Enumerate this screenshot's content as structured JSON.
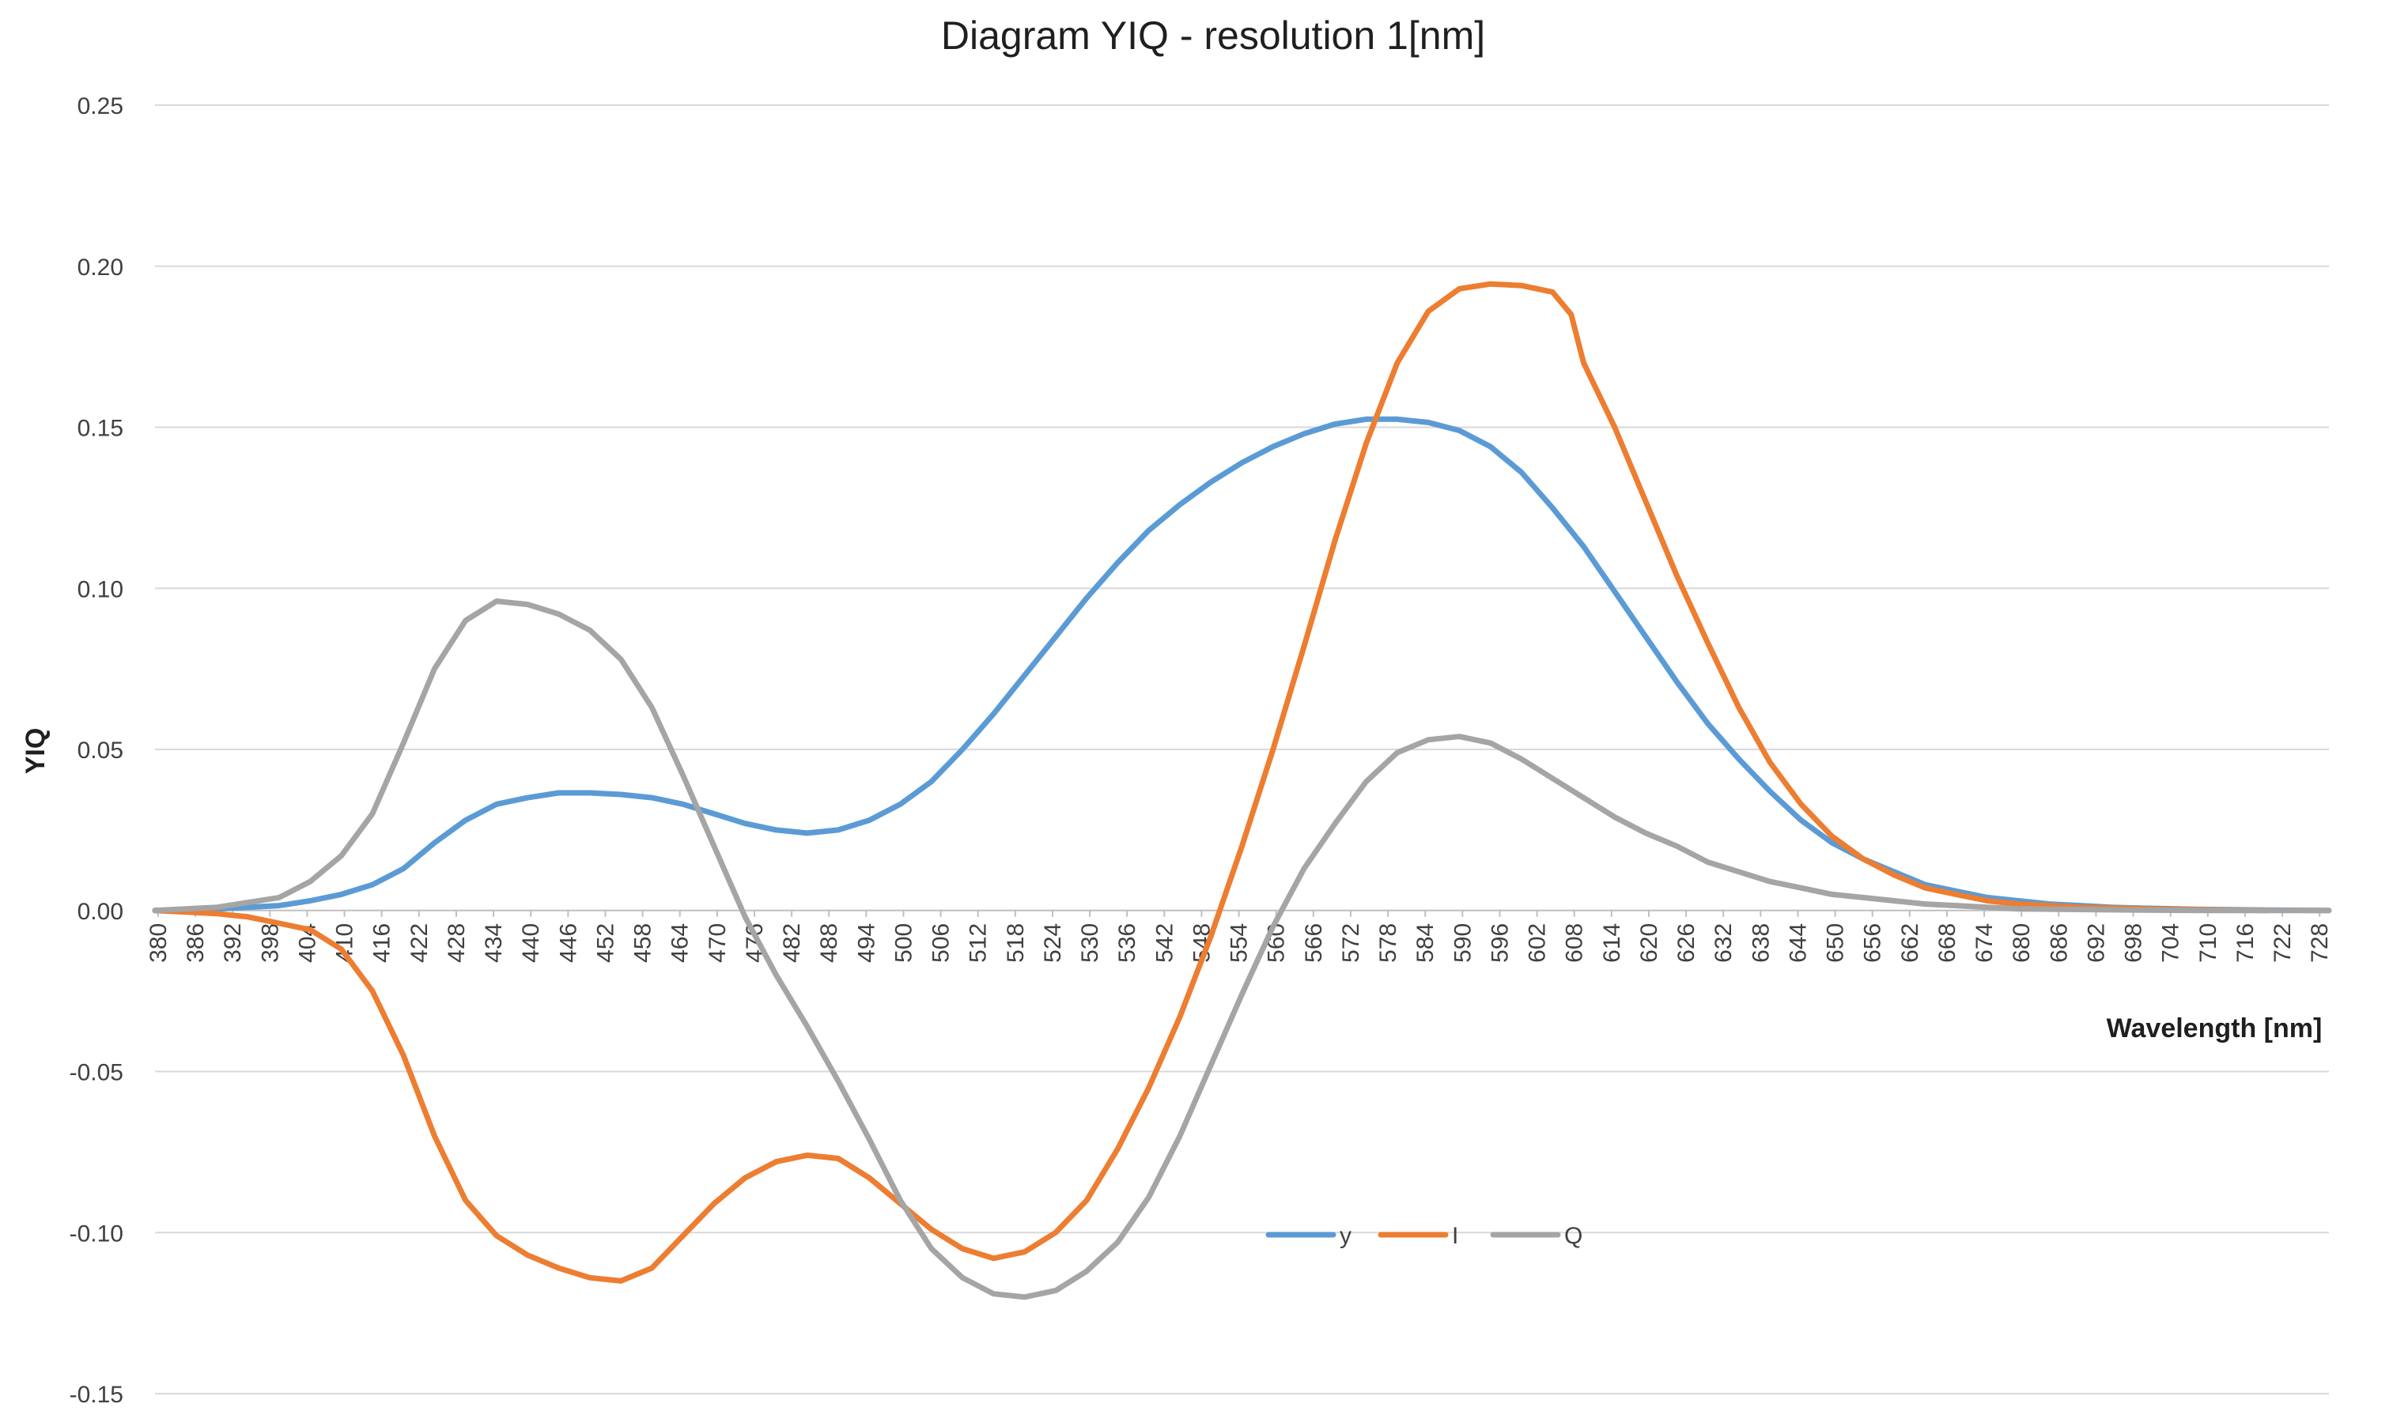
{
  "chart_data": {
    "type": "line",
    "title": "Diagram YIQ - resolution 1[nm]",
    "xlabel": "Wavelength [nm]",
    "ylabel": "YIQ",
    "ylim": [
      -0.15,
      0.25
    ],
    "yticks": [
      "0.25",
      "0.20",
      "0.15",
      "0.10",
      "0.05",
      "0.00",
      "-0.05",
      "-0.10",
      "-0.15"
    ],
    "ytick_values": [
      0.25,
      0.2,
      0.15,
      0.1,
      0.05,
      0.0,
      -0.05,
      -0.1,
      -0.15
    ],
    "x_range": [
      380,
      730
    ],
    "xticks": [
      "380",
      "386",
      "392",
      "398",
      "404",
      "410",
      "416",
      "422",
      "428",
      "434",
      "440",
      "446",
      "452",
      "458",
      "464",
      "470",
      "476",
      "482",
      "488",
      "494",
      "500",
      "506",
      "512",
      "518",
      "524",
      "530",
      "536",
      "542",
      "548",
      "554",
      "560",
      "566",
      "572",
      "578",
      "584",
      "590",
      "596",
      "602",
      "608",
      "614",
      "620",
      "626",
      "632",
      "638",
      "644",
      "650",
      "656",
      "662",
      "668",
      "674",
      "680",
      "686",
      "692",
      "698",
      "704",
      "710",
      "716",
      "722",
      "728"
    ],
    "grid": true,
    "legend_position": "bottom-center",
    "series": [
      {
        "name": "y",
        "color": "#5b9bd5",
        "x": [
          380,
          390,
          400,
          405,
          410,
          415,
          420,
          425,
          430,
          435,
          440,
          445,
          450,
          455,
          460,
          465,
          470,
          475,
          480,
          485,
          490,
          495,
          500,
          505,
          510,
          515,
          520,
          525,
          530,
          535,
          540,
          545,
          550,
          555,
          560,
          565,
          570,
          575,
          580,
          585,
          590,
          595,
          600,
          605,
          610,
          615,
          620,
          625,
          630,
          635,
          640,
          645,
          650,
          655,
          660,
          665,
          670,
          675,
          680,
          685,
          690,
          695,
          700,
          710,
          720,
          730
        ],
        "values": [
          0.0,
          0.0005,
          0.0015,
          0.003,
          0.005,
          0.008,
          0.013,
          0.021,
          0.028,
          0.033,
          0.035,
          0.0365,
          0.0365,
          0.036,
          0.035,
          0.033,
          0.03,
          0.027,
          0.025,
          0.024,
          0.025,
          0.028,
          0.033,
          0.04,
          0.05,
          0.061,
          0.073,
          0.085,
          0.097,
          0.108,
          0.118,
          0.126,
          0.133,
          0.139,
          0.144,
          0.148,
          0.151,
          0.1525,
          0.1525,
          0.1515,
          0.149,
          0.144,
          0.136,
          0.125,
          0.113,
          0.099,
          0.085,
          0.071,
          0.058,
          0.047,
          0.037,
          0.028,
          0.021,
          0.016,
          0.012,
          0.008,
          0.006,
          0.004,
          0.003,
          0.002,
          0.0015,
          0.001,
          0.0007,
          0.0003,
          0.0001,
          0.0
        ]
      },
      {
        "name": "I",
        "color": "#ed7d31",
        "x": [
          380,
          390,
          395,
          400,
          405,
          410,
          415,
          420,
          425,
          430,
          435,
          440,
          445,
          450,
          455,
          460,
          465,
          470,
          475,
          480,
          485,
          490,
          495,
          500,
          505,
          510,
          515,
          520,
          525,
          530,
          535,
          540,
          545,
          550,
          555,
          560,
          565,
          570,
          575,
          580,
          585,
          590,
          595,
          600,
          605,
          608,
          610,
          615,
          620,
          625,
          630,
          635,
          640,
          645,
          650,
          655,
          660,
          665,
          670,
          675,
          680,
          685,
          690,
          695,
          700,
          710,
          720
        ],
        "values": [
          0.0,
          -0.001,
          -0.002,
          -0.004,
          -0.006,
          -0.012,
          -0.025,
          -0.045,
          -0.07,
          -0.09,
          -0.101,
          -0.107,
          -0.111,
          -0.114,
          -0.115,
          -0.111,
          -0.101,
          -0.091,
          -0.083,
          -0.078,
          -0.076,
          -0.077,
          -0.083,
          -0.091,
          -0.099,
          -0.105,
          -0.108,
          -0.106,
          -0.1,
          -0.09,
          -0.074,
          -0.055,
          -0.033,
          -0.008,
          0.02,
          0.05,
          0.082,
          0.115,
          0.145,
          0.17,
          0.186,
          0.193,
          0.1945,
          0.194,
          0.192,
          0.185,
          0.17,
          0.15,
          0.127,
          0.104,
          0.083,
          0.063,
          0.046,
          0.033,
          0.023,
          0.016,
          0.011,
          0.007,
          0.005,
          0.003,
          0.002,
          0.0015,
          0.001,
          0.0008,
          0.0005,
          0.0002,
          0.0
        ]
      },
      {
        "name": "Q",
        "color": "#a5a5a5",
        "x": [
          380,
          390,
          400,
          405,
          410,
          415,
          420,
          425,
          430,
          435,
          440,
          445,
          450,
          455,
          460,
          465,
          470,
          475,
          480,
          485,
          490,
          495,
          500,
          505,
          510,
          515,
          520,
          525,
          530,
          535,
          540,
          545,
          550,
          555,
          560,
          565,
          570,
          575,
          580,
          585,
          590,
          595,
          600,
          605,
          610,
          615,
          620,
          625,
          630,
          635,
          640,
          645,
          650,
          655,
          660,
          665,
          670,
          675,
          680,
          690,
          700,
          710,
          720,
          730
        ],
        "values": [
          0.0,
          0.001,
          0.004,
          0.009,
          0.017,
          0.03,
          0.052,
          0.075,
          0.09,
          0.096,
          0.095,
          0.092,
          0.087,
          0.078,
          0.063,
          0.042,
          0.02,
          -0.002,
          -0.02,
          -0.036,
          -0.053,
          -0.071,
          -0.09,
          -0.105,
          -0.114,
          -0.119,
          -0.12,
          -0.118,
          -0.112,
          -0.103,
          -0.089,
          -0.07,
          -0.048,
          -0.026,
          -0.005,
          0.013,
          0.027,
          0.04,
          0.049,
          0.053,
          0.054,
          0.052,
          0.047,
          0.041,
          0.035,
          0.029,
          0.024,
          0.02,
          0.015,
          0.012,
          0.009,
          0.007,
          0.005,
          0.004,
          0.003,
          0.002,
          0.0015,
          0.001,
          0.0005,
          0.0003,
          0.0001,
          0.0,
          0.0,
          0.0
        ]
      }
    ]
  }
}
